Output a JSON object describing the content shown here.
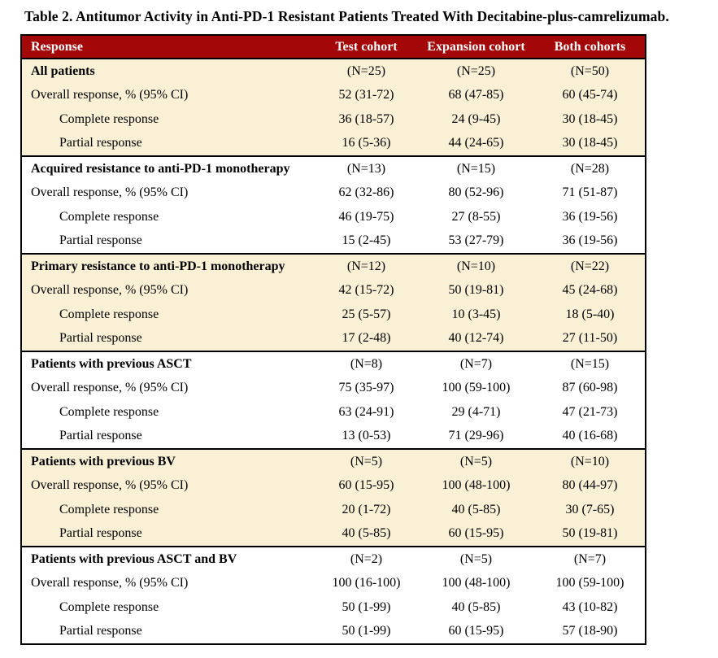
{
  "title": "Table 2. Antitumor Activity in Anti-PD-1 Resistant Patients Treated With Decitabine-plus-camrelizumab.",
  "table": {
    "colors": {
      "header_bg": "#a30707",
      "header_fg": "#ffffff",
      "stripe_bg": "#faf0d6",
      "border": "#000000"
    },
    "columns": {
      "response": "Response",
      "test": "Test cohort",
      "expansion": "Expansion cohort",
      "both": "Both cohorts"
    },
    "sections": [
      {
        "header": "All patients",
        "n": [
          "(N=25)",
          "(N=25)",
          "(N=50)"
        ],
        "rows": [
          {
            "label": "Overall response, % (95% CI)",
            "indent": false,
            "values": [
              "52 (31-72)",
              "68 (47-85)",
              "60 (45-74)"
            ]
          },
          {
            "label": "Complete response",
            "indent": true,
            "values": [
              "36 (18-57)",
              "24 (9-45)",
              "30 (18-45)"
            ]
          },
          {
            "label": "Partial response",
            "indent": true,
            "values": [
              "16 (5-36)",
              "44 (24-65)",
              "30 (18-45)"
            ]
          }
        ]
      },
      {
        "header": "Acquired resistance to anti-PD-1 monotherapy",
        "n": [
          "(N=13)",
          "(N=15)",
          "(N=28)"
        ],
        "rows": [
          {
            "label": "Overall response, % (95% CI)",
            "indent": false,
            "values": [
              "62 (32-86)",
              "80 (52-96)",
              "71 (51-87)"
            ]
          },
          {
            "label": "Complete response",
            "indent": true,
            "values": [
              "46 (19-75)",
              "27 (8-55)",
              "36 (19-56)"
            ]
          },
          {
            "label": "Partial response",
            "indent": true,
            "values": [
              "15 (2-45)",
              "53 (27-79)",
              "36 (19-56)"
            ]
          }
        ]
      },
      {
        "header": "Primary resistance to anti-PD-1 monotherapy",
        "n": [
          "(N=12)",
          "(N=10)",
          "(N=22)"
        ],
        "rows": [
          {
            "label": "Overall response, % (95% CI)",
            "indent": false,
            "values": [
              "42 (15-72)",
              "50 (19-81)",
              "45 (24-68)"
            ]
          },
          {
            "label": "Complete response",
            "indent": true,
            "values": [
              "25 (5-57)",
              "10 (3-45)",
              "18 (5-40)"
            ]
          },
          {
            "label": "Partial response",
            "indent": true,
            "values": [
              "17 (2-48)",
              "40 (12-74)",
              "27 (11-50)"
            ]
          }
        ]
      },
      {
        "header": "Patients with previous ASCT",
        "n": [
          "(N=8)",
          "(N=7)",
          "(N=15)"
        ],
        "rows": [
          {
            "label": "Overall response, % (95% CI)",
            "indent": false,
            "values": [
              "75 (35-97)",
              "100 (59-100)",
              "87 (60-98)"
            ]
          },
          {
            "label": "Complete response",
            "indent": true,
            "values": [
              "63 (24-91)",
              "29 (4-71)",
              "47 (21-73)"
            ]
          },
          {
            "label": "Partial response",
            "indent": true,
            "values": [
              "13 (0-53)",
              "71 (29-96)",
              "40 (16-68)"
            ]
          }
        ]
      },
      {
        "header": "Patients with previous BV",
        "n": [
          "(N=5)",
          "(N=5)",
          "(N=10)"
        ],
        "rows": [
          {
            "label": "Overall response, % (95% CI)",
            "indent": false,
            "values": [
              "60 (15-95)",
              "100 (48-100)",
              "80 (44-97)"
            ]
          },
          {
            "label": "Complete response",
            "indent": true,
            "values": [
              "20 (1-72)",
              "40 (5-85)",
              "30 (7-65)"
            ]
          },
          {
            "label": "Partial response",
            "indent": true,
            "values": [
              "40 (5-85)",
              "60 (15-95)",
              "50 (19-81)"
            ]
          }
        ]
      },
      {
        "header": "Patients with previous ASCT and BV",
        "n": [
          "(N=2)",
          "(N=5)",
          "(N=7)"
        ],
        "rows": [
          {
            "label": "Overall response, % (95% CI)",
            "indent": false,
            "values": [
              "100 (16-100)",
              "100 (48-100)",
              "100 (59-100)"
            ]
          },
          {
            "label": "Complete response",
            "indent": true,
            "values": [
              "50 (1-99)",
              "40 (5-85)",
              "43 (10-82)"
            ]
          },
          {
            "label": "Partial response",
            "indent": true,
            "values": [
              "50 (1-99)",
              "60 (15-95)",
              "57 (18-90)"
            ]
          }
        ]
      }
    ]
  }
}
